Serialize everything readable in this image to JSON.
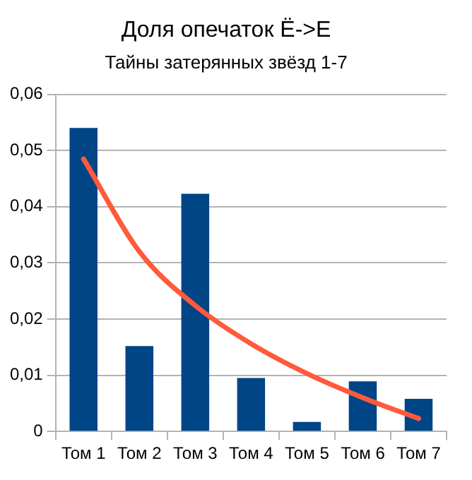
{
  "chart_data": {
    "type": "bar",
    "title": "Доля опечаток Ё->Е",
    "subtitle": "Тайны затерянных звёзд 1-7",
    "categories": [
      "Том 1",
      "Том 2",
      "Том 3",
      "Том 4",
      "Том 5",
      "Том 6",
      "Том 7"
    ],
    "series": [
      {
        "color": "#004586",
        "values": [
          0.054,
          0.0152,
          0.0423,
          0.0095,
          0.0017,
          0.0089,
          0.0058
        ]
      },
      {
        "type": "line",
        "color": "#ff5a3c",
        "marker": "none",
        "values": [
          0.0485,
          0.032,
          0.0224,
          0.0156,
          0.0103,
          0.006,
          0.0023
        ]
      }
    ],
    "ylim": [
      0,
      0.06
    ],
    "yticks": [
      {
        "value": 0,
        "label": "0"
      },
      {
        "value": 0.01,
        "label": "0,01"
      },
      {
        "value": 0.02,
        "label": "0,02"
      },
      {
        "value": 0.03,
        "label": "0,03"
      },
      {
        "value": 0.04,
        "label": "0,04"
      },
      {
        "value": 0.05,
        "label": "0,05"
      },
      {
        "value": 0.06,
        "label": "0,06"
      }
    ],
    "grid": "y",
    "legend": false
  }
}
